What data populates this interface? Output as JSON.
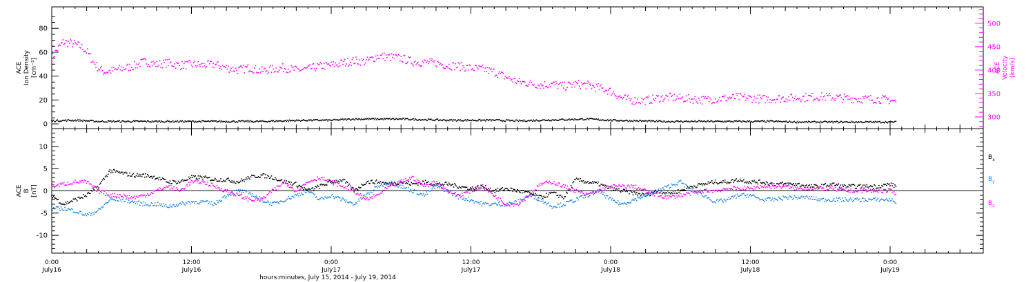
{
  "chart_data": [
    {
      "type": "scatter",
      "panel": "top",
      "ylabel_left": [
        "ACE",
        "Ion Density",
        "[cm⁻³]"
      ],
      "ylabel_right": [
        "ACE",
        "Velocity",
        "[km/s]"
      ],
      "ylim_left": [
        -4,
        98
      ],
      "yticks_left": [
        "0",
        "20",
        "40",
        "60",
        "80"
      ],
      "ylim_right": [
        275,
        535
      ],
      "yticks_right": [
        "300",
        "350",
        "400",
        "450",
        "500"
      ],
      "xlim_hours": [
        0,
        80
      ],
      "series": [
        {
          "axis": "right",
          "color": "#ff00ff",
          "x_hours": [
            0,
            0.5,
            1,
            1.5,
            2,
            2.5,
            3,
            3.5,
            4,
            4.5,
            5,
            5.5,
            6,
            7,
            8,
            9,
            10,
            11,
            12,
            13,
            14,
            15,
            16,
            17,
            18,
            19,
            20,
            21,
            22,
            23,
            24,
            25,
            26,
            27,
            28,
            29,
            30,
            31,
            32,
            33,
            34,
            35,
            36,
            37,
            38,
            39,
            40,
            41,
            42,
            43,
            44,
            45,
            46,
            47,
            48,
            49,
            50,
            51,
            52,
            53,
            54,
            55,
            56,
            57,
            58,
            59,
            60,
            61,
            62,
            63,
            64,
            65,
            66,
            67,
            68,
            69,
            70,
            71,
            72,
            72.5
          ],
          "values": [
            425,
            445,
            460,
            458,
            455,
            450,
            440,
            420,
            405,
            396,
            398,
            400,
            403,
            408,
            418,
            412,
            415,
            410,
            412,
            410,
            412,
            405,
            400,
            405,
            398,
            402,
            405,
            400,
            402,
            408,
            410,
            415,
            420,
            418,
            430,
            428,
            425,
            418,
            416,
            415,
            410,
            408,
            404,
            402,
            396,
            385,
            375,
            372,
            368,
            370,
            365,
            370,
            368,
            362,
            355,
            340,
            335,
            335,
            340,
            342,
            340,
            338,
            336,
            338,
            340,
            342,
            340,
            338,
            339,
            340,
            341,
            342,
            343,
            342,
            340,
            339,
            338,
            338,
            336,
            332
          ]
        },
        {
          "axis": "left",
          "color": "#000000",
          "x_hours": [
            0,
            2,
            4,
            6,
            8,
            10,
            12,
            14,
            16,
            18,
            20,
            22,
            24,
            26,
            28,
            30,
            32,
            34,
            36,
            38,
            40,
            42,
            44,
            46,
            48,
            50,
            52,
            54,
            56,
            58,
            60,
            62,
            64,
            66,
            68,
            70,
            72.5
          ],
          "values": [
            2.5,
            3,
            2,
            2,
            2,
            2,
            2,
            2,
            2,
            2,
            2.5,
            3,
            3,
            4,
            4,
            4,
            3.5,
            3,
            3,
            3,
            2.5,
            3,
            3.5,
            4,
            3,
            2.5,
            2,
            2,
            2,
            2,
            2,
            2,
            1.5,
            1.5,
            1.5,
            1.5,
            1.5
          ]
        }
      ]
    },
    {
      "type": "scatter",
      "panel": "bottom",
      "ylabel_left": [
        "ACE",
        "B",
        "[nT]"
      ],
      "ylim": [
        -14,
        14
      ],
      "yticks": [
        "-10",
        "-5",
        "0",
        "5",
        "10"
      ],
      "xlim_hours": [
        0,
        80
      ],
      "series": [
        {
          "name": "Bx",
          "color": "#000000",
          "x_hours": [
            0,
            1,
            2,
            3,
            4,
            5,
            6,
            7,
            8,
            9,
            10,
            11,
            12,
            13,
            14,
            15,
            16,
            17,
            18,
            19,
            20,
            21,
            22,
            23,
            24,
            25,
            26,
            27,
            28,
            29,
            30,
            31,
            32,
            33,
            34,
            35,
            36,
            37,
            38,
            39,
            40,
            41,
            42,
            43,
            44,
            45,
            46,
            47,
            48,
            49,
            50,
            51,
            52,
            53,
            54,
            55,
            56,
            57,
            58,
            59,
            60,
            61,
            62,
            63,
            64,
            65,
            66,
            67,
            68,
            69,
            70,
            71,
            72,
            72.5
          ],
          "values": [
            -1,
            -3,
            -2,
            -1,
            1,
            4.5,
            4,
            3.5,
            3.5,
            3,
            2,
            2,
            3,
            3,
            2.5,
            2.5,
            2,
            3,
            3.5,
            3,
            2,
            1.5,
            0,
            1,
            2,
            2.5,
            0,
            2,
            2,
            1.5,
            2,
            1.5,
            2,
            1.5,
            1.5,
            1,
            0.5,
            1,
            0,
            0.5,
            0,
            -0.5,
            -1.5,
            -0.5,
            -1.5,
            2.5,
            2,
            1.5,
            0.5,
            0,
            -0.5,
            -1,
            0,
            -0.5,
            0,
            1,
            1.5,
            2,
            2,
            2.5,
            2,
            2,
            1.5,
            1.5,
            1.5,
            1,
            1,
            1.5,
            1,
            1,
            1,
            1,
            1.5,
            1
          ]
        },
        {
          "name": "By",
          "color": "#1e88e5",
          "x_hours": [
            0,
            1,
            2,
            3,
            4,
            5,
            6,
            7,
            8,
            9,
            10,
            11,
            12,
            13,
            14,
            15,
            16,
            17,
            18,
            19,
            20,
            21,
            22,
            23,
            24,
            25,
            26,
            27,
            28,
            29,
            30,
            31,
            32,
            33,
            34,
            35,
            36,
            37,
            38,
            39,
            40,
            41,
            42,
            43,
            44,
            45,
            46,
            47,
            48,
            49,
            50,
            51,
            52,
            53,
            54,
            55,
            56,
            57,
            58,
            59,
            60,
            61,
            62,
            63,
            64,
            65,
            66,
            67,
            68,
            69,
            70,
            71,
            72,
            72.5
          ],
          "values": [
            -4,
            -4,
            -4.5,
            -5.5,
            -4.5,
            -2,
            -2,
            -2.5,
            -3,
            -3,
            -3.5,
            -3,
            -2.5,
            -2.5,
            -3,
            -1,
            0,
            -0.5,
            -2,
            -3,
            -2,
            -1,
            0,
            -2,
            -1,
            -2,
            -3,
            -1,
            1,
            2,
            1,
            0,
            -1,
            1,
            0,
            -1.5,
            -2,
            -3,
            -3,
            -3,
            -2.5,
            -1,
            -2,
            -3.5,
            -3,
            -2,
            -1,
            0,
            -2,
            -3,
            -2,
            -1,
            0,
            1,
            2,
            0,
            -1,
            -2.5,
            -2,
            -1,
            -1,
            -2,
            -2,
            -1.5,
            -1.5,
            -1.5,
            -2,
            -2,
            -2,
            -2,
            -2,
            -2,
            -2,
            -2.5
          ]
        },
        {
          "name": "Bz",
          "color": "#ff00ff",
          "x_hours": [
            0,
            1,
            2,
            3,
            4,
            5,
            6,
            7,
            8,
            9,
            10,
            11,
            12,
            13,
            14,
            15,
            16,
            17,
            18,
            19,
            20,
            21,
            22,
            23,
            24,
            25,
            26,
            27,
            28,
            29,
            30,
            31,
            32,
            33,
            34,
            35,
            36,
            37,
            38,
            39,
            40,
            41,
            42,
            43,
            44,
            45,
            46,
            47,
            48,
            49,
            50,
            51,
            52,
            53,
            54,
            55,
            56,
            57,
            58,
            59,
            60,
            61,
            62,
            63,
            64,
            65,
            66,
            67,
            68,
            69,
            70,
            71,
            72,
            72.5
          ],
          "values": [
            1,
            1.5,
            2,
            2,
            0,
            -1,
            -1,
            -1.5,
            -1,
            0,
            1,
            0,
            2,
            2,
            1,
            0,
            -1,
            -2,
            -2,
            0,
            2,
            0,
            2,
            3,
            2,
            1,
            0,
            -2,
            -1,
            1,
            2,
            3,
            1,
            2,
            0,
            -1,
            0,
            1,
            -1,
            -3,
            -3,
            -1,
            1.5,
            2,
            1,
            0,
            -1,
            0,
            1,
            1,
            1,
            0,
            -1,
            -1.5,
            -1,
            -0.5,
            0,
            0,
            0.5,
            0.5,
            0.5,
            1,
            1,
            1,
            0.5,
            0.5,
            0.5,
            0.5,
            0,
            0,
            0,
            0,
            0,
            -0.5
          ]
        }
      ],
      "legend": {
        "placement": "right",
        "labels": [
          {
            "base": "B",
            "sub": "x",
            "color": "#000000"
          },
          {
            "base": "B",
            "sub": "y",
            "color": "#1e88e5"
          },
          {
            "base": "B",
            "sub": "z",
            "color": "#ff00ff"
          }
        ]
      }
    }
  ],
  "x_axis": {
    "ticks": [
      {
        "hour": 0,
        "time": "0:00",
        "date": "July16"
      },
      {
        "hour": 12,
        "time": "12:00",
        "date": "July16"
      },
      {
        "hour": 24,
        "time": "0:00",
        "date": "July17"
      },
      {
        "hour": 36,
        "time": "12:00",
        "date": "July17"
      },
      {
        "hour": 48,
        "time": "0:00",
        "date": "July18"
      },
      {
        "hour": 60,
        "time": "12:00",
        "date": "July18"
      },
      {
        "hour": 72,
        "time": "0:00",
        "date": "July19"
      }
    ],
    "xlabel": "hours:minutes, July 15, 2014 - July 19, 2014"
  }
}
